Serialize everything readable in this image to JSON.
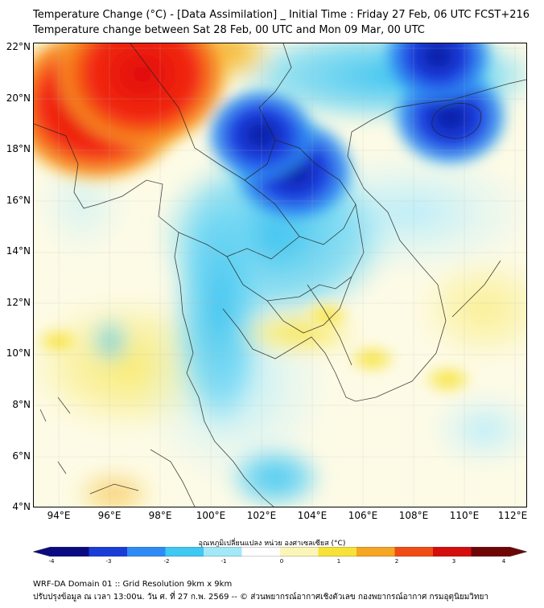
{
  "title": {
    "line1": "Temperature Change (°C) - [Data Assimilation] _ Initial Time : Friday 27 Feb, 06 UTC FCST+216",
    "line2": "Temperature change between Sat 28 Feb, 00 UTC and Mon 09 Mar, 00 UTC"
  },
  "map": {
    "y_ticks": [
      "22°N",
      "20°N",
      "18°N",
      "16°N",
      "14°N",
      "12°N",
      "10°N",
      "8°N",
      "6°N",
      "4°N"
    ],
    "x_ticks": [
      "94°E",
      "96°E",
      "98°E",
      "100°E",
      "102°E",
      "104°E",
      "106°E",
      "108°E",
      "110°E",
      "112°E"
    ],
    "lon_range": [
      93,
      112.5
    ],
    "lat_range": [
      4,
      22.2
    ],
    "background_color": "#ffffff",
    "features": [
      {
        "name": "warm-anomaly-myanmar",
        "type": "heat-peak",
        "lon": 95.5,
        "lat": 19.8,
        "value": 3.2
      },
      {
        "name": "warm-anomaly-west",
        "type": "heat-peak",
        "lon": 97.3,
        "lat": 21.0,
        "value": 3.0
      },
      {
        "name": "cold-anomaly-northeast-thailand",
        "type": "cold-peak",
        "lon": 103.3,
        "lat": 17.2,
        "value": -3.7
      },
      {
        "name": "cold-anomaly-laos",
        "type": "cold-peak",
        "lon": 102.0,
        "lat": 18.6,
        "value": -3.0
      },
      {
        "name": "cold-anomaly-hainan",
        "type": "cold-peak",
        "lon": 109.5,
        "lat": 19.3,
        "value": -3.3
      },
      {
        "name": "cold-anomaly-south-china",
        "type": "cold-peak",
        "lon": 109.0,
        "lat": 21.7,
        "value": -3.0
      },
      {
        "name": "warm-anomaly-cambodia",
        "type": "warm-spot",
        "lon": 104.6,
        "lat": 11.5,
        "value": 0.9
      },
      {
        "name": "warm-anomaly-mekong-delta",
        "type": "warm-spot",
        "lon": 106.4,
        "lat": 9.8,
        "value": 1.0
      },
      {
        "name": "warm-anomaly-south-china-sea",
        "type": "warm-spot",
        "lon": 109.4,
        "lat": 9.0,
        "value": 1.1
      },
      {
        "name": "warm-anomaly-andaman",
        "type": "warm-spot",
        "lon": 94.0,
        "lat": 10.5,
        "value": 0.8
      }
    ]
  },
  "colorbar": {
    "caption": "อุณหภูมิเปลี่ยนแปลง หน่วย องศาเซลเซียส (°C)",
    "min": -4,
    "max": 4,
    "labels": [
      "-4",
      "-3",
      "-2",
      "-1",
      "0",
      "1",
      "2",
      "3",
      "4"
    ],
    "colors": [
      "#0a0a82",
      "#1a3cd7",
      "#2d8bf5",
      "#3ec8f2",
      "#a3e8f7",
      "#ffffff",
      "#fbf5b8",
      "#f7e23a",
      "#f5a623",
      "#ef4d15",
      "#d40d0d",
      "#6e0606"
    ]
  },
  "footer": {
    "line1": "WRF-DA Domain 01 :: Grid Resolution 9km x 9km",
    "line2": "ปรับปรุงข้อมูล ณ เวลา 13:00น. วัน ศ. ที่ 27 ก.พ. 2569 -- © ส่วนพยากรณ์อากาศเชิงตัวเลข กองพยากรณ์อากาศ กรมอุตุนิยมวิทยา"
  }
}
